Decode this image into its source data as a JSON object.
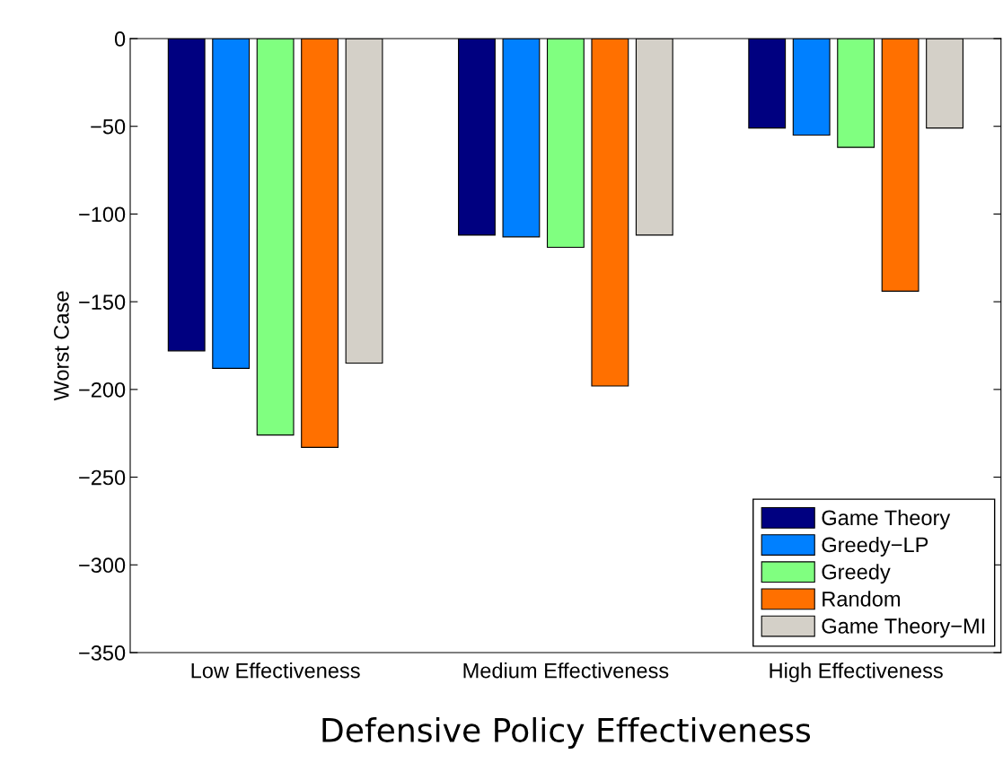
{
  "chart_data": {
    "type": "bar",
    "xlabel": "Defensive Policy Effectiveness",
    "ylabel": "Worst Case",
    "categories": [
      "Low Effectiveness",
      "Medium Effectiveness",
      "High Effectiveness"
    ],
    "series": [
      {
        "name": "Game Theory",
        "color": "#000080",
        "values": [
          -178,
          -112,
          -51
        ]
      },
      {
        "name": "Greedy−LP",
        "color": "#0080ff",
        "values": [
          -188,
          -113,
          -55
        ]
      },
      {
        "name": "Greedy",
        "color": "#80ff80",
        "values": [
          -226,
          -119,
          -62
        ]
      },
      {
        "name": "Random",
        "color": "#ff7000",
        "values": [
          -233,
          -198,
          -144
        ]
      },
      {
        "name": "Game Theory−MI",
        "color": "#d4d0c8",
        "values": [
          -185,
          -112,
          -51
        ]
      }
    ],
    "ylim": [
      -350,
      0
    ],
    "yticks": [
      {
        "value": -350,
        "label": "−350"
      },
      {
        "value": -300,
        "label": "−300"
      },
      {
        "value": -250,
        "label": "−250"
      },
      {
        "value": -200,
        "label": "−200"
      },
      {
        "value": -150,
        "label": "−150"
      },
      {
        "value": -100,
        "label": "−100"
      },
      {
        "value": -50,
        "label": "−50"
      },
      0
    ],
    "legend": "bottom right",
    "grid": false
  }
}
